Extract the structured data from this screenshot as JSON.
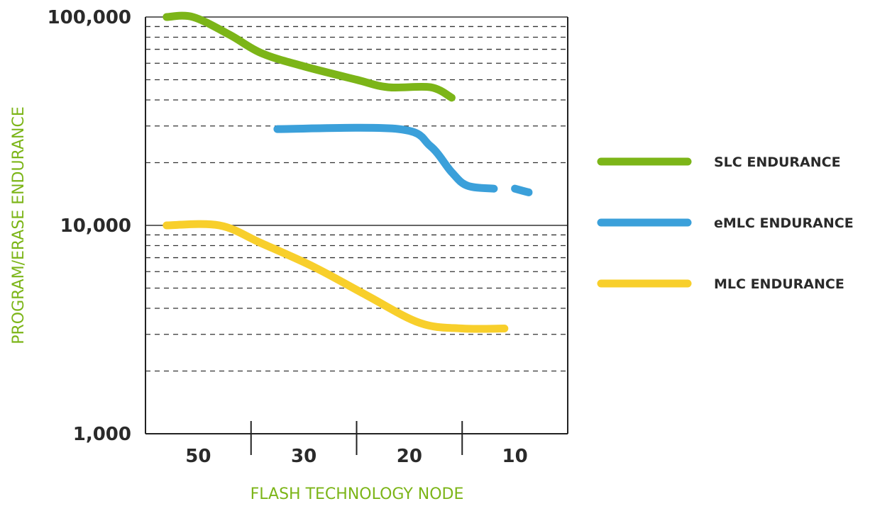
{
  "chart_data": {
    "type": "line",
    "ylabel": "PROGRAM/ERASE  ENDURANCE",
    "xlabel": "FLASH TECHNOLOGY NODE",
    "y_scale": "log",
    "ylim": [
      1000,
      100000
    ],
    "yticks": [
      {
        "value": 100000,
        "label": "100,000"
      },
      {
        "value": 10000,
        "label": "10,000"
      },
      {
        "value": 1000,
        "label": "1,000"
      }
    ],
    "categories": [
      "50",
      "30",
      "20",
      "10"
    ],
    "grid": "dashed horizontal minor lines",
    "legend_position": "right",
    "series": [
      {
        "name": "SLC ENDURANCE",
        "color": "#7cb518",
        "points": [
          [
            0.2,
            100000
          ],
          [
            0.45,
            100000
          ],
          [
            0.8,
            82000
          ],
          [
            1.1,
            67000
          ],
          [
            1.5,
            58000
          ],
          [
            2.0,
            50000
          ],
          [
            2.3,
            46000
          ],
          [
            2.7,
            46000
          ],
          [
            2.9,
            41000
          ]
        ]
      },
      {
        "name": "eMLC ENDURANCE",
        "color": "#3ba0da",
        "points": [
          [
            1.25,
            29000
          ],
          [
            2.4,
            29000
          ],
          [
            2.7,
            24000
          ],
          [
            2.9,
            18000
          ],
          [
            3.05,
            15500
          ],
          [
            3.3,
            15000
          ]
        ]
      },
      {
        "name": "eMLC ENDURANCE (segment 2)",
        "color": "#3ba0da",
        "points": [
          [
            3.5,
            15000
          ],
          [
            3.63,
            14400
          ]
        ]
      },
      {
        "name": "MLC ENDURANCE",
        "color": "#f8cf2b",
        "points": [
          [
            0.2,
            10000
          ],
          [
            0.7,
            10000
          ],
          [
            1.1,
            8200
          ],
          [
            1.6,
            6300
          ],
          [
            2.1,
            4600
          ],
          [
            2.6,
            3400
          ],
          [
            3.0,
            3200
          ],
          [
            3.4,
            3200
          ]
        ]
      }
    ]
  }
}
